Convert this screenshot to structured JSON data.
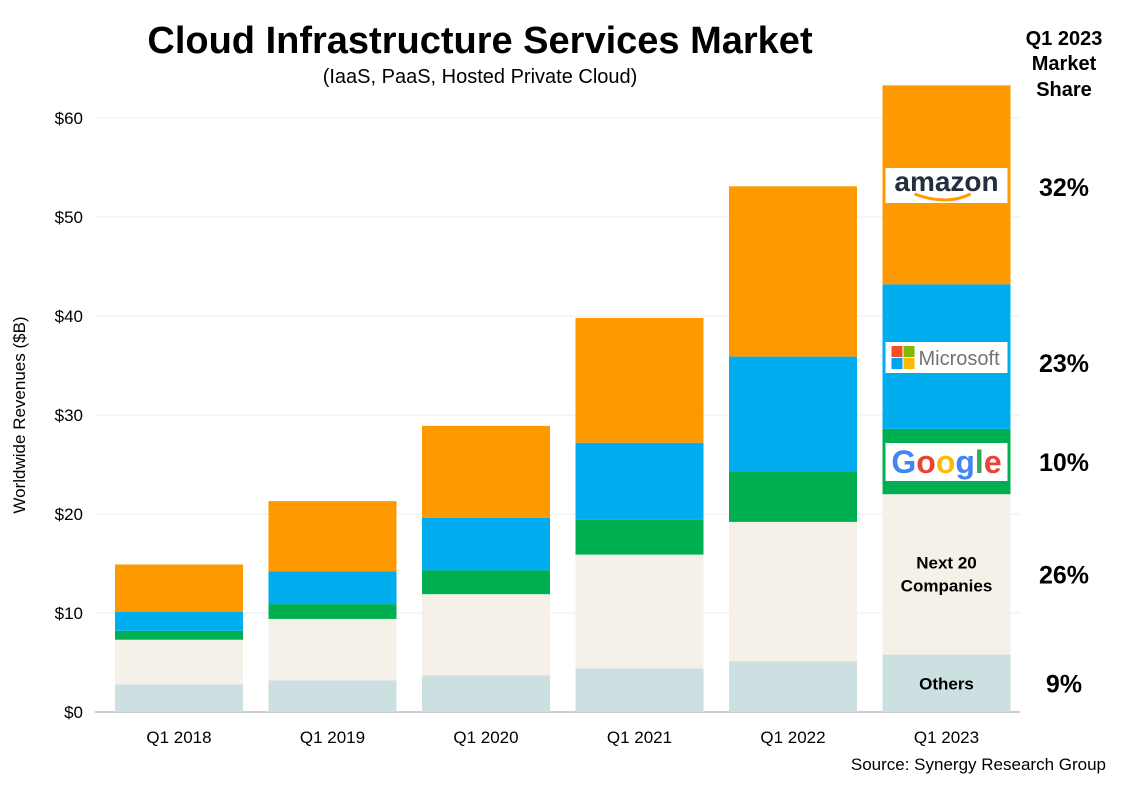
{
  "chart_data": {
    "type": "bar",
    "stacked": true,
    "title": "Cloud Infrastructure Services Market",
    "subtitle": "(IaaS, PaaS, Hosted Private Cloud)",
    "xlabel": "",
    "ylabel": "Worldwide Revenues ($B)",
    "ylim": [
      0,
      63
    ],
    "yticks": [
      "$0",
      "$10",
      "$20",
      "$30",
      "$40",
      "$50",
      "$60"
    ],
    "ytick_values": [
      0,
      10,
      20,
      30,
      40,
      50,
      60
    ],
    "grid": true,
    "categories": [
      "Q1 2018",
      "Q1 2019",
      "Q1 2020",
      "Q1 2021",
      "Q1 2022",
      "Q1 2023"
    ],
    "series": [
      {
        "name": "Others",
        "color": "#CCE0E1",
        "values": [
          2.8,
          3.2,
          3.7,
          4.4,
          5.1,
          5.8
        ],
        "share": "9%"
      },
      {
        "name": "Next 20 Companies",
        "color": "#F5F0E8",
        "values": [
          4.5,
          6.2,
          8.2,
          11.5,
          14.1,
          16.2
        ],
        "share": "26%"
      },
      {
        "name": "Google",
        "logo": "Google",
        "color": "#00B050",
        "values": [
          0.9,
          1.5,
          2.4,
          3.5,
          5.1,
          6.6
        ],
        "share": "10%"
      },
      {
        "name": "Microsoft",
        "logo": "Microsoft",
        "color": "#00AEEF",
        "values": [
          1.9,
          3.3,
          5.3,
          7.8,
          11.6,
          14.6
        ],
        "share": "23%"
      },
      {
        "name": "Amazon",
        "logo": "amazon",
        "color": "#FF9900",
        "values": [
          4.8,
          7.1,
          9.3,
          12.6,
          17.2,
          20.1
        ],
        "share": "32%"
      }
    ],
    "share_header": [
      "Q1 2023",
      "Market",
      "Share"
    ],
    "label_next20": [
      "Next 20",
      "Companies"
    ],
    "label_others": "Others",
    "source": "Source: Synergy Research Group"
  }
}
